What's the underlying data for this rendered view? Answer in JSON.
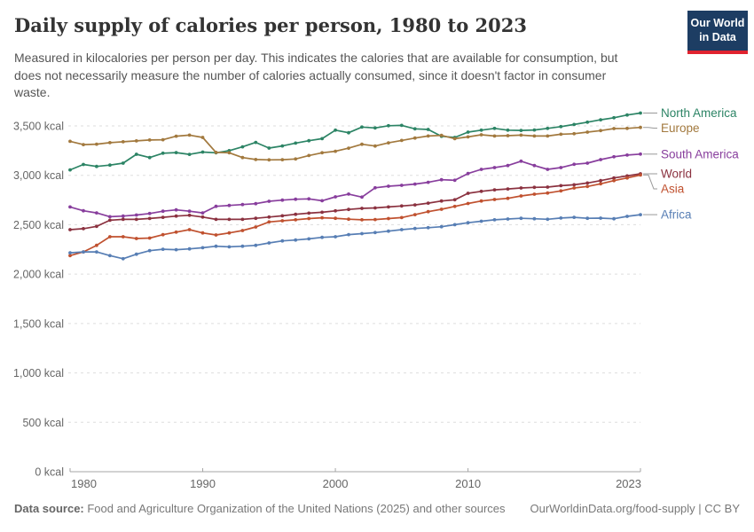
{
  "header": {
    "title": "Daily supply of calories per person, 1980 to 2023",
    "subtitle_lines": [
      "Measured in kilocalories per person per day. This indicates the calories that are available for consumption, but",
      "does not necessarily measure the number of calories actually consumed, since it doesn't factor in consumer",
      "waste."
    ],
    "logo": {
      "line1": "Our World",
      "line2": "in Data",
      "bg_color": "#1d3d63",
      "accent_color": "#e0232f"
    }
  },
  "footer": {
    "source_label": "Data source:",
    "source_text": " Food and Agriculture Organization of the United Nations (2025) and other sources",
    "link_text": "OurWorldinData.org/food-supply | CC BY"
  },
  "chart_data": {
    "type": "line",
    "title": "Daily supply of calories per person, 1980 to 2023",
    "xlabel": "",
    "ylabel": "",
    "unit": "kcal",
    "x_min": 1980,
    "x_max": 2023,
    "ylim": [
      0,
      3500
    ],
    "grid": "dashed-horizontal",
    "legend_position": "right-of-line-ends",
    "x_ticks": [
      {
        "year": 1980,
        "label": "1980"
      },
      {
        "year": 1990,
        "label": "1990"
      },
      {
        "year": 2000,
        "label": "2000"
      },
      {
        "year": 2010,
        "label": "2010"
      },
      {
        "year": 2023,
        "label": "2023"
      }
    ],
    "y_ticks": [
      {
        "value": 0,
        "label": "0 kcal"
      },
      {
        "value": 500,
        "label": "500 kcal"
      },
      {
        "value": 1000,
        "label": "1,000 kcal"
      },
      {
        "value": 1500,
        "label": "1,500 kcal"
      },
      {
        "value": 2000,
        "label": "2,000 kcal"
      },
      {
        "value": 2500,
        "label": "2,500 kcal"
      },
      {
        "value": 3000,
        "label": "3,000 kcal"
      },
      {
        "value": 3500,
        "label": "3,500 kcal"
      }
    ],
    "years": [
      1980,
      1981,
      1982,
      1983,
      1984,
      1985,
      1986,
      1987,
      1988,
      1989,
      1990,
      1991,
      1992,
      1993,
      1994,
      1995,
      1996,
      1997,
      1998,
      1999,
      2000,
      2001,
      2002,
      2003,
      2004,
      2005,
      2006,
      2007,
      2008,
      2009,
      2010,
      2011,
      2012,
      2013,
      2014,
      2015,
      2016,
      2017,
      2018,
      2019,
      2020,
      2021,
      2022,
      2023
    ],
    "series": [
      {
        "name": "North America",
        "color": "#2C8465",
        "values": [
          3055,
          3110,
          3090,
          3103,
          3123,
          3213,
          3180,
          3224,
          3230,
          3212,
          3235,
          3228,
          3250,
          3288,
          3333,
          3276,
          3297,
          3326,
          3350,
          3371,
          3457,
          3431,
          3488,
          3479,
          3502,
          3505,
          3470,
          3464,
          3395,
          3383,
          3437,
          3457,
          3475,
          3457,
          3454,
          3459,
          3475,
          3493,
          3514,
          3538,
          3562,
          3583,
          3610,
          3630
        ]
      },
      {
        "name": "Europe",
        "color": "#A2793E",
        "values": [
          3344,
          3311,
          3315,
          3330,
          3339,
          3348,
          3357,
          3360,
          3396,
          3407,
          3383,
          3232,
          3228,
          3180,
          3160,
          3156,
          3158,
          3165,
          3200,
          3228,
          3243,
          3275,
          3314,
          3296,
          3329,
          3353,
          3377,
          3398,
          3404,
          3371,
          3389,
          3410,
          3398,
          3401,
          3407,
          3398,
          3398,
          3416,
          3421,
          3437,
          3452,
          3473,
          3475,
          3485
        ]
      },
      {
        "name": "South America",
        "color": "#883E9D",
        "values": [
          2680,
          2641,
          2620,
          2581,
          2587,
          2598,
          2613,
          2637,
          2650,
          2637,
          2620,
          2686,
          2695,
          2704,
          2713,
          2737,
          2749,
          2758,
          2761,
          2743,
          2782,
          2810,
          2779,
          2874,
          2890,
          2899,
          2911,
          2929,
          2955,
          2950,
          3018,
          3060,
          3078,
          3099,
          3143,
          3099,
          3060,
          3078,
          3111,
          3123,
          3159,
          3188,
          3205,
          3215
        ]
      },
      {
        "name": "World",
        "color": "#8B3240",
        "values": [
          2450,
          2460,
          2483,
          2545,
          2554,
          2554,
          2563,
          2575,
          2587,
          2595,
          2577,
          2554,
          2554,
          2554,
          2565,
          2577,
          2590,
          2605,
          2617,
          2626,
          2640,
          2655,
          2665,
          2670,
          2680,
          2690,
          2700,
          2718,
          2740,
          2752,
          2818,
          2838,
          2853,
          2862,
          2872,
          2878,
          2881,
          2895,
          2904,
          2922,
          2946,
          2973,
          2994,
          3015
        ]
      },
      {
        "name": "Asia",
        "color": "#C0512F",
        "values": [
          2187,
          2225,
          2291,
          2378,
          2378,
          2360,
          2365,
          2399,
          2425,
          2450,
          2417,
          2396,
          2417,
          2441,
          2477,
          2528,
          2540,
          2550,
          2562,
          2570,
          2565,
          2556,
          2550,
          2552,
          2562,
          2572,
          2602,
          2632,
          2656,
          2685,
          2715,
          2740,
          2755,
          2767,
          2791,
          2809,
          2821,
          2842,
          2872,
          2887,
          2914,
          2946,
          2973,
          3003
        ]
      },
      {
        "name": "Africa",
        "color": "#577EB4",
        "values": [
          2216,
          2225,
          2225,
          2187,
          2156,
          2201,
          2237,
          2252,
          2247,
          2255,
          2267,
          2282,
          2276,
          2282,
          2291,
          2315,
          2336,
          2345,
          2357,
          2372,
          2378,
          2400,
          2410,
          2420,
          2435,
          2450,
          2462,
          2470,
          2480,
          2500,
          2520,
          2535,
          2550,
          2558,
          2565,
          2560,
          2555,
          2568,
          2575,
          2565,
          2567,
          2560,
          2585,
          2602
        ]
      }
    ]
  }
}
